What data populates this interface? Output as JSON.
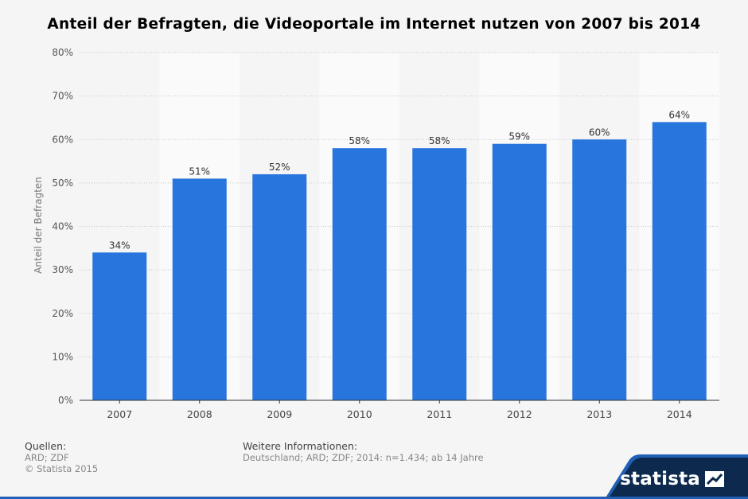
{
  "title": "Anteil der Befragten, die Videoportale im Internet nutzen von 2007 bis 2014",
  "chart_data": {
    "type": "bar",
    "categories": [
      "2007",
      "2008",
      "2009",
      "2010",
      "2011",
      "2012",
      "2013",
      "2014"
    ],
    "values": [
      34,
      51,
      52,
      58,
      58,
      59,
      60,
      64
    ],
    "value_labels": [
      "34%",
      "51%",
      "52%",
      "58%",
      "58%",
      "59%",
      "60%",
      "64%"
    ],
    "ylabel": "Anteil der Befragten",
    "ylim": [
      0,
      80
    ],
    "yticks": [
      0,
      10,
      20,
      30,
      40,
      50,
      60,
      70,
      80
    ],
    "ytick_labels": [
      "0%",
      "10%",
      "20%",
      "30%",
      "40%",
      "50%",
      "60%",
      "70%",
      "80%"
    ],
    "grid": true,
    "bar_color": "#2876dd"
  },
  "footer": {
    "sources_heading": "Quellen:",
    "sources_line1": "ARD; ZDF",
    "sources_line2": "© Statista 2015",
    "info_heading": "Weitere Informationen:",
    "info_text": "Deutschland; ARD; ZDF; 2014: n=1.434; ab 14 Jahre"
  },
  "brand": {
    "name": "statista",
    "icon": "statista-logo-icon",
    "accent_color": "#1f5fb5",
    "dark_color": "#0d2a4e"
  }
}
